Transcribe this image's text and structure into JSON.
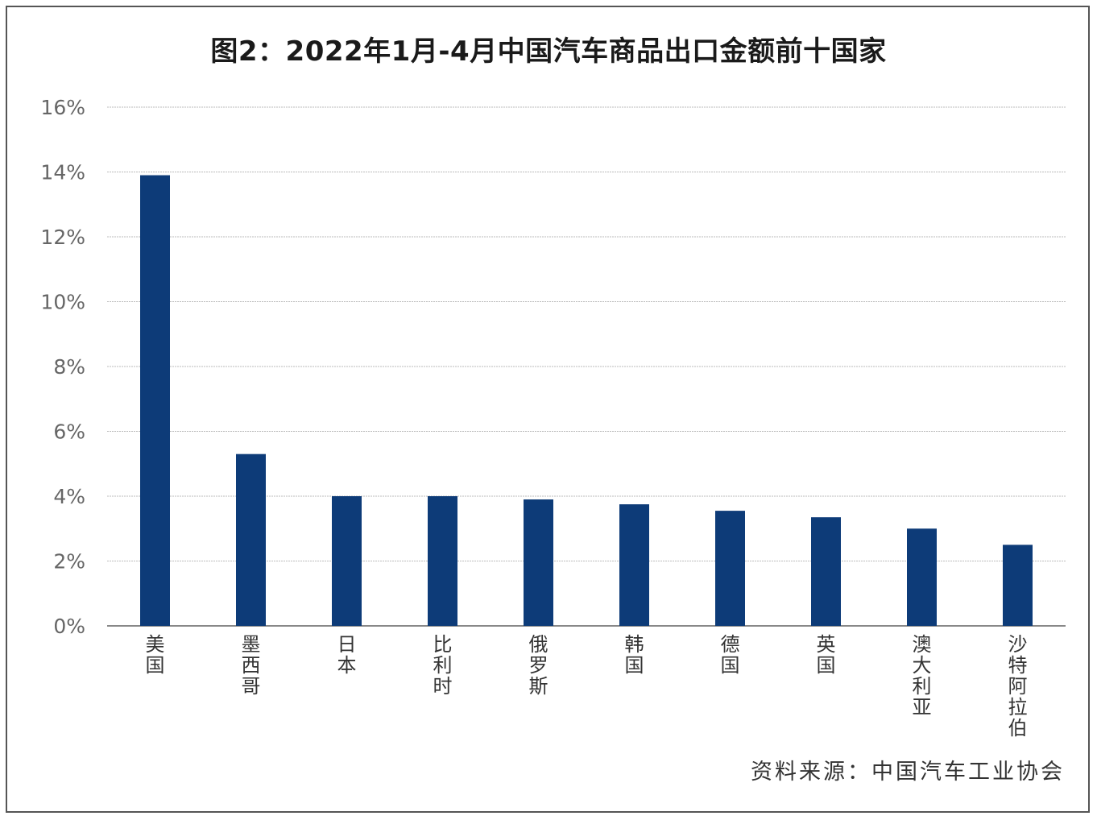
{
  "chart_data": {
    "type": "bar",
    "title": "图2：2022年1月-4月中国汽车商品出口金额前十国家",
    "categories": [
      "美国",
      "墨西哥",
      "日本",
      "比利时",
      "俄罗斯",
      "韩国",
      "德国",
      "英国",
      "澳大利亚",
      "沙特阿拉伯"
    ],
    "values": [
      13.9,
      5.3,
      4.0,
      4.0,
      3.9,
      3.75,
      3.55,
      3.35,
      3.0,
      2.5
    ],
    "yticks": [
      "0%",
      "2%",
      "4%",
      "6%",
      "8%",
      "10%",
      "12%",
      "14%",
      "16%"
    ],
    "ylim": [
      0,
      16
    ],
    "xlabel": "",
    "ylabel": "",
    "grid": true,
    "bar_color": "#0d3b78",
    "grid_color": "#bbbbbb",
    "axis_color": "#888888"
  },
  "source": "资料来源：中国汽车工业协会"
}
